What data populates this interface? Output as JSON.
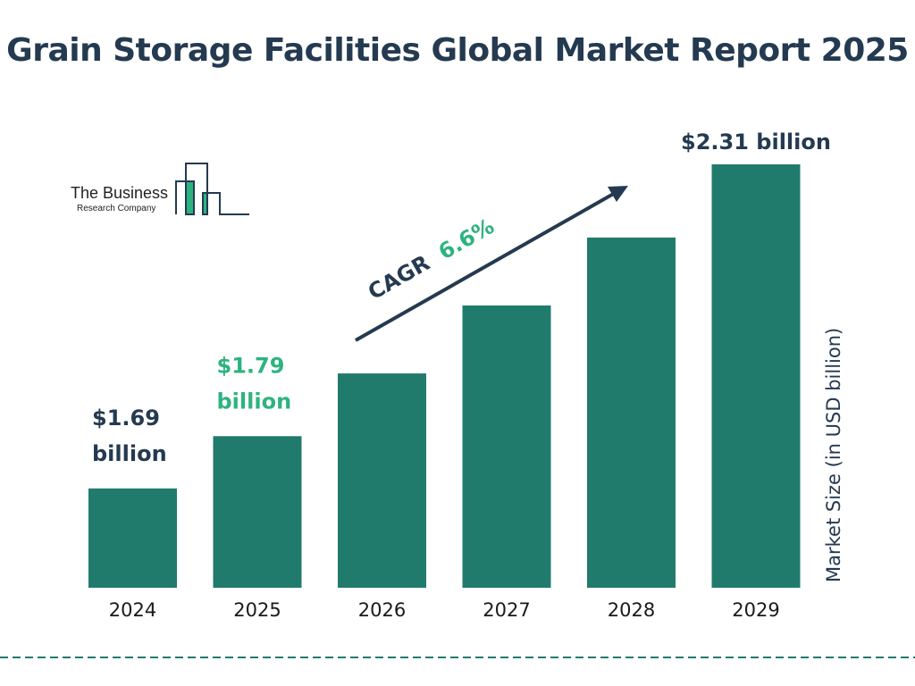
{
  "logo": {
    "line1": "The Business",
    "line2": "Research Company"
  },
  "colors": {
    "bar": "#217b6c",
    "accent": "#2db37f",
    "text": "#243a50",
    "divider": "#217b6c"
  },
  "chart_data": {
    "type": "bar",
    "title": "Grain Storage Facilities Global Market Report 2025",
    "categories": [
      "2024",
      "2025",
      "2026",
      "2027",
      "2028",
      "2029"
    ],
    "values": [
      1.69,
      1.79,
      1.91,
      2.04,
      2.17,
      2.31
    ],
    "data_labels": {
      "2024": "$1.69 billion",
      "2025": "$1.79 billion",
      "2029": "$2.31 billion"
    },
    "ylabel": "Market Size (in USD billion)",
    "xlabel": "",
    "ylim": [
      1.5,
      2.31
    ],
    "grid": false,
    "annotation": {
      "prefix": "CAGR",
      "value": "6.6%"
    }
  }
}
